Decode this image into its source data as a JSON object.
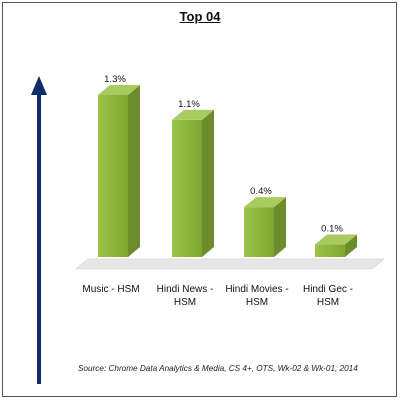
{
  "chart_data": {
    "type": "bar",
    "title": "Top 04",
    "categories": [
      [
        "Music - HSM"
      ],
      [
        "Hindi News -",
        "HSM"
      ],
      [
        "Hindi Movies -",
        "HSM"
      ],
      [
        "Hindi Gec -",
        "HSM"
      ]
    ],
    "values": [
      1.3,
      1.1,
      0.4,
      0.1
    ],
    "data_labels": [
      "1.3%",
      "1.1%",
      "0.4%",
      "0.1%"
    ],
    "ylim": [
      0,
      1.3
    ],
    "grid": false,
    "legend": "none",
    "source": "Source: Chrome Data Analytics & Media, CS 4+, OTS, Wk-02 & Wk-01, 2014",
    "colors": {
      "bar_front": "#8db63c",
      "bar_side": "#6d8d2c",
      "bar_top": "#a9cb5e",
      "arrow": "#0f2d6b",
      "floor": "#e6e6e6"
    }
  }
}
